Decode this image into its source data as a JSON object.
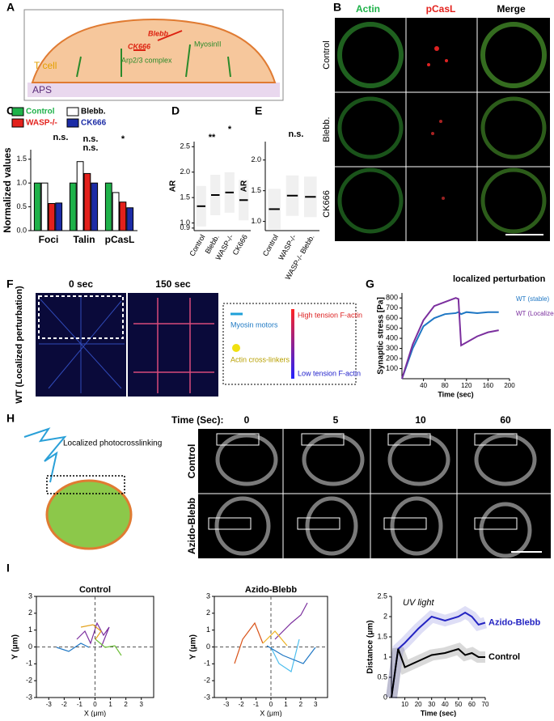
{
  "panel_labels": [
    "A",
    "B",
    "C",
    "D",
    "E",
    "F",
    "G",
    "H",
    "I"
  ],
  "schematic_A": {
    "inhibitor_1": "CK666",
    "inhibitor_2": "Blebb.",
    "target_1": "Arp2/3 complex",
    "target_2": "MyosinII",
    "cell": "T cell",
    "surface": "APS"
  },
  "images_B": {
    "columns": [
      "Actin",
      "pCasL",
      "Merge"
    ],
    "rows": [
      "Control",
      "Blebb.",
      "CK666"
    ]
  },
  "images_F": {
    "times": [
      "0 sec",
      "150 sec"
    ],
    "row": "WT (Localized perturbation)",
    "legend": [
      "Myosin motors",
      "Actin cross-linkers",
      "High tension F-actin",
      "Low tension F-actin"
    ]
  },
  "images_H": {
    "time_header": "Time (Sec):",
    "times": [
      "0",
      "5",
      "10",
      "60"
    ],
    "rows": [
      "Control",
      "Azido-Blebb"
    ],
    "schematic": "Localized photocrosslinking"
  },
  "chart_data": [
    {
      "type": "bar",
      "categories": [
        "Foci",
        "Talin",
        "pCasL"
      ],
      "series": [
        {
          "name": "Control",
          "color": "#1fb24a",
          "values": [
            1.0,
            1.0,
            1.0
          ]
        },
        {
          "name": "Blebb.",
          "color": "#ffffff",
          "values": [
            1.0,
            1.45,
            0.8
          ]
        },
        {
          "name": "WASP-/-",
          "color": "#e3211c",
          "values": [
            0.57,
            1.2,
            0.6
          ]
        },
        {
          "name": "CK666",
          "color": "#1c2ca6",
          "values": [
            0.58,
            1.0,
            0.48
          ]
        }
      ],
      "ylabel": "Normalized values",
      "ylim": [
        0,
        1.7
      ],
      "yticks": [
        {
          "value": 0,
          "label": "0.0"
        },
        0.5,
        {
          "value": 1,
          "label": "1.0"
        },
        1.5
      ],
      "annotations": [
        "n.s.",
        "n.s.",
        "n.s.",
        "*"
      ]
    },
    {
      "type": "dot",
      "categories": [
        "Control",
        "Blebb.",
        "WASP-/-",
        "CK666"
      ],
      "values": [
        1.33,
        1.55,
        1.6,
        1.45
      ],
      "color": "#999999",
      "ylabel": "AR",
      "ylim": [
        0.85,
        2.6
      ],
      "yticks": [
        0.9,
        {
          "value": 1,
          "label": "1.0"
        },
        1.5,
        {
          "value": 2,
          "label": "2.0"
        },
        2.5
      ],
      "annotations": [
        "**",
        "*"
      ]
    },
    {
      "type": "dot",
      "categories": [
        "Control",
        "WASP-/-",
        "WASP-/- Blebb."
      ],
      "values": [
        1.2,
        1.42,
        1.4
      ],
      "color": "#999999",
      "ylabel": "AR",
      "ylim": [
        0.85,
        2.3
      ],
      "yticks": [
        {
          "value": 1,
          "label": "1.0"
        },
        1.5,
        {
          "value": 2,
          "label": "2.0"
        }
      ],
      "annotations": [
        "n.s."
      ]
    },
    {
      "type": "line",
      "x": [
        0,
        20,
        40,
        60,
        80,
        100,
        105,
        110,
        120,
        140,
        160,
        180
      ],
      "series": [
        {
          "name": "WT (stable)",
          "color": "#1f77c4",
          "values": [
            0,
            300,
            520,
            600,
            640,
            650,
            660,
            640,
            660,
            650,
            660,
            660
          ]
        },
        {
          "name": "WT (Localized network perturbation)",
          "color": "#7b2f9e",
          "values": [
            0,
            340,
            580,
            720,
            760,
            800,
            790,
            330,
            360,
            420,
            460,
            480
          ]
        }
      ],
      "ylabel": "Synaptic stress [Pa]",
      "xlabel": "Time (sec)",
      "xlim": [
        0,
        200
      ],
      "xticks": [
        40,
        80,
        120,
        160,
        200
      ],
      "ylim": [
        0,
        850
      ],
      "yticks": [
        100,
        200,
        300,
        400,
        500,
        600,
        700,
        800
      ],
      "annotations": [
        "localized perturbation"
      ]
    },
    {
      "type": "trajectory",
      "title": "Control",
      "xlabel": "X (μm)",
      "ylabel": "Y (μm)",
      "xlim": [
        -3.8,
        3.8
      ],
      "ylim": [
        -3,
        3
      ],
      "xticks": [
        -3,
        -2,
        -1,
        0,
        1,
        2,
        3
      ],
      "yticks": [
        -3,
        -2,
        -1,
        0,
        1,
        2,
        3
      ]
    },
    {
      "type": "trajectory",
      "title": "Azido-Blebb",
      "xlabel": "X (μm)",
      "ylabel": "Y (μm)",
      "xlim": [
        -3.8,
        3.8
      ],
      "ylim": [
        -3,
        3
      ],
      "xticks": [
        -3,
        -2,
        -1,
        0,
        1,
        2,
        3
      ],
      "yticks": [
        -3,
        -2,
        -1,
        0,
        1,
        2,
        3
      ]
    },
    {
      "type": "line",
      "x": [
        0,
        5,
        10,
        20,
        30,
        40,
        50,
        55,
        60,
        65,
        70
      ],
      "series": [
        {
          "name": "Azido-Blebb",
          "color": "#2323c2",
          "values": [
            0,
            1.2,
            1.35,
            1.7,
            2.0,
            1.9,
            2.0,
            2.1,
            2.0,
            1.8,
            1.85
          ]
        },
        {
          "name": "Control",
          "color": "#000000",
          "values": [
            0,
            1.2,
            0.75,
            0.9,
            1.05,
            1.1,
            1.2,
            1.05,
            1.1,
            1.0,
            1.0
          ]
        }
      ],
      "ylabel": "Distance (μm)",
      "xlabel": "Time (sec)",
      "xlim": [
        0,
        70
      ],
      "xticks": [
        10,
        20,
        30,
        40,
        50,
        60,
        70
      ],
      "ylim": [
        0,
        2.5
      ],
      "yticks": [
        0,
        0.5,
        1,
        1.5,
        2,
        2.5
      ],
      "annotations": [
        "UV light"
      ]
    }
  ]
}
